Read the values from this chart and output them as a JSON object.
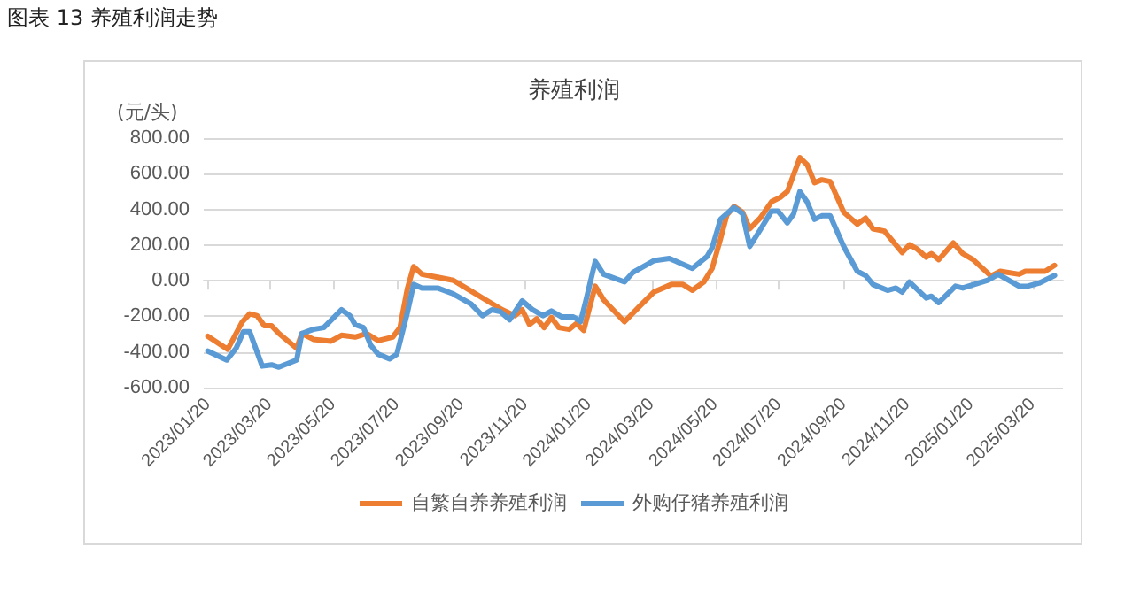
{
  "chart_data": {
    "type": "line",
    "title": "养殖利润",
    "subtitle": "图表 13 养殖利润走势",
    "ylabel": "(元/头)",
    "xlim": [
      "2023-01-16",
      "2025-04-18"
    ],
    "xticks": [
      {
        "value": "2023-01-20",
        "label": "2023/01/20"
      },
      {
        "value": "2023-03-20",
        "label": "2023/03/20"
      },
      {
        "value": "2023-05-20",
        "label": "2023/05/20"
      },
      {
        "value": "2023-07-20",
        "label": "2023/07/20"
      },
      {
        "value": "2023-09-20",
        "label": "2023/09/20"
      },
      {
        "value": "2023-11-20",
        "label": "2023/11/20"
      },
      {
        "value": "2024-01-20",
        "label": "2024/01/20"
      },
      {
        "value": "2024-03-20",
        "label": "2024/03/20"
      },
      {
        "value": "2024-05-20",
        "label": "2024/05/20"
      },
      {
        "value": "2024-07-20",
        "label": "2024/07/20"
      },
      {
        "value": "2024-09-20",
        "label": "2024/09/20"
      },
      {
        "value": "2024-11-20",
        "label": "2024/11/20"
      },
      {
        "value": "2025-01-20",
        "label": "2025/01/20"
      },
      {
        "value": "2025-03-20",
        "label": "2025/03/20"
      }
    ],
    "ylim": [
      -600,
      800
    ],
    "yticks": [
      {
        "value": -600,
        "label": "-600.00"
      },
      {
        "value": -400,
        "label": "-400.00"
      },
      {
        "value": -200,
        "label": "-200.00"
      },
      {
        "value": 0,
        "label": "0.00"
      },
      {
        "value": 200,
        "label": "200.00"
      },
      {
        "value": 400,
        "label": "400.00"
      },
      {
        "value": 600,
        "label": "600.00"
      },
      {
        "value": 800,
        "label": "800.00"
      }
    ],
    "grid": "y",
    "legend": "bottom",
    "marker": "none",
    "line_style": "solid",
    "series": [
      {
        "name": "自繁自养养殖利润",
        "color": "#ed7d31",
        "x": [
          "2023-01-20",
          "2023-02-08",
          "2023-02-22",
          "2023-03-01",
          "2023-03-08",
          "2023-03-15",
          "2023-03-22",
          "2023-03-29",
          "2023-04-15",
          "2023-04-20",
          "2023-05-01",
          "2023-05-18",
          "2023-05-28",
          "2023-06-10",
          "2023-06-21",
          "2023-07-02",
          "2023-07-16",
          "2023-07-23",
          "2023-07-30",
          "2023-08-05",
          "2023-08-13",
          "2023-08-28",
          "2023-09-12",
          "2023-09-26",
          "2023-10-13",
          "2023-10-29",
          "2023-11-10",
          "2023-11-17",
          "2023-11-24",
          "2023-12-01",
          "2023-12-08",
          "2023-12-15",
          "2023-12-22",
          "2024-01-01",
          "2024-01-08",
          "2024-01-15",
          "2024-01-20",
          "2024-01-26",
          "2024-02-03",
          "2024-02-23",
          "2024-03-08",
          "2024-03-22",
          "2024-04-08",
          "2024-04-19",
          "2024-04-28",
          "2024-05-09",
          "2024-05-17",
          "2024-05-25",
          "2024-05-31",
          "2024-06-07",
          "2024-06-15",
          "2024-06-22",
          "2024-07-02",
          "2024-07-13",
          "2024-07-21",
          "2024-07-28",
          "2024-08-09",
          "2024-08-16",
          "2024-08-23",
          "2024-08-30",
          "2024-09-07",
          "2024-09-20",
          "2024-10-03",
          "2024-10-11",
          "2024-10-18",
          "2024-10-29",
          "2024-11-15",
          "2024-11-22",
          "2024-11-29",
          "2024-12-08",
          "2024-12-13",
          "2024-12-20",
          "2025-01-03",
          "2025-01-12",
          "2025-01-22",
          "2025-02-08",
          "2025-02-17",
          "2025-03-07",
          "2025-03-13",
          "2025-04-01",
          "2025-04-10"
        ],
        "values": [
          -312,
          -385,
          -230,
          -186,
          -196,
          -253,
          -253,
          -296,
          -379,
          -296,
          -329,
          -339,
          -306,
          -316,
          -296,
          -336,
          -316,
          -263,
          -47,
          79,
          36,
          19,
          2,
          -47,
          -107,
          -163,
          -196,
          -163,
          -246,
          -213,
          -263,
          -206,
          -263,
          -273,
          -240,
          -279,
          -163,
          -31,
          -107,
          -230,
          -146,
          -64,
          -21,
          -21,
          -54,
          -7,
          69,
          235,
          367,
          417,
          384,
          291,
          351,
          444,
          467,
          500,
          690,
          650,
          550,
          566,
          556,
          384,
          317,
          351,
          291,
          278,
          158,
          202,
          179,
          132,
          152,
          118,
          212,
          152,
          118,
          26,
          53,
          36,
          53,
          53,
          86
        ]
      },
      {
        "name": "外购仔猪养殖利润",
        "color": "#5b9bd5",
        "x": [
          "2023-01-20",
          "2023-02-07",
          "2023-02-16",
          "2023-02-23",
          "2023-03-01",
          "2023-03-13",
          "2023-03-22",
          "2023-03-29",
          "2023-04-15",
          "2023-04-20",
          "2023-05-01",
          "2023-05-11",
          "2023-05-28",
          "2023-06-05",
          "2023-06-10",
          "2023-06-18",
          "2023-06-25",
          "2023-07-02",
          "2023-07-13",
          "2023-07-20",
          "2023-07-30",
          "2023-08-05",
          "2023-08-13",
          "2023-08-28",
          "2023-09-12",
          "2023-09-29",
          "2023-10-10",
          "2023-10-19",
          "2023-10-27",
          "2023-11-05",
          "2023-11-17",
          "2023-11-27",
          "2023-12-07",
          "2023-12-15",
          "2023-12-25",
          "2024-01-05",
          "2024-01-12",
          "2024-01-17",
          "2024-01-26",
          "2024-02-03",
          "2024-02-23",
          "2024-03-02",
          "2024-03-22",
          "2024-04-06",
          "2024-04-28",
          "2024-05-12",
          "2024-05-17",
          "2024-05-25",
          "2024-06-07",
          "2024-06-15",
          "2024-06-22",
          "2024-07-02",
          "2024-07-13",
          "2024-07-19",
          "2024-07-28",
          "2024-08-03",
          "2024-08-09",
          "2024-08-16",
          "2024-08-23",
          "2024-08-30",
          "2024-09-07",
          "2024-09-20",
          "2024-10-03",
          "2024-10-11",
          "2024-10-18",
          "2024-11-01",
          "2024-11-09",
          "2024-11-15",
          "2024-11-22",
          "2024-12-08",
          "2024-12-13",
          "2024-12-20",
          "2025-01-05",
          "2025-01-12",
          "2025-02-05",
          "2025-02-15",
          "2025-03-07",
          "2025-03-15",
          "2025-03-26",
          "2025-04-10"
        ],
        "values": [
          -395,
          -445,
          -379,
          -286,
          -286,
          -479,
          -472,
          -485,
          -445,
          -296,
          -273,
          -263,
          -163,
          -196,
          -246,
          -263,
          -362,
          -412,
          -439,
          -412,
          -180,
          -21,
          -41,
          -41,
          -74,
          -130,
          -196,
          -163,
          -173,
          -219,
          -113,
          -163,
          -196,
          -170,
          -203,
          -203,
          -229,
          -113,
          108,
          36,
          -7,
          46,
          112,
          125,
          69,
          135,
          185,
          344,
          411,
          377,
          192,
          285,
          391,
          391,
          324,
          374,
          500,
          441,
          344,
          364,
          364,
          192,
          53,
          29,
          -21,
          -54,
          -41,
          -64,
          -7,
          -97,
          -87,
          -123,
          -31,
          -41,
          3,
          36,
          -31,
          -31,
          -14,
          29
        ]
      }
    ]
  }
}
